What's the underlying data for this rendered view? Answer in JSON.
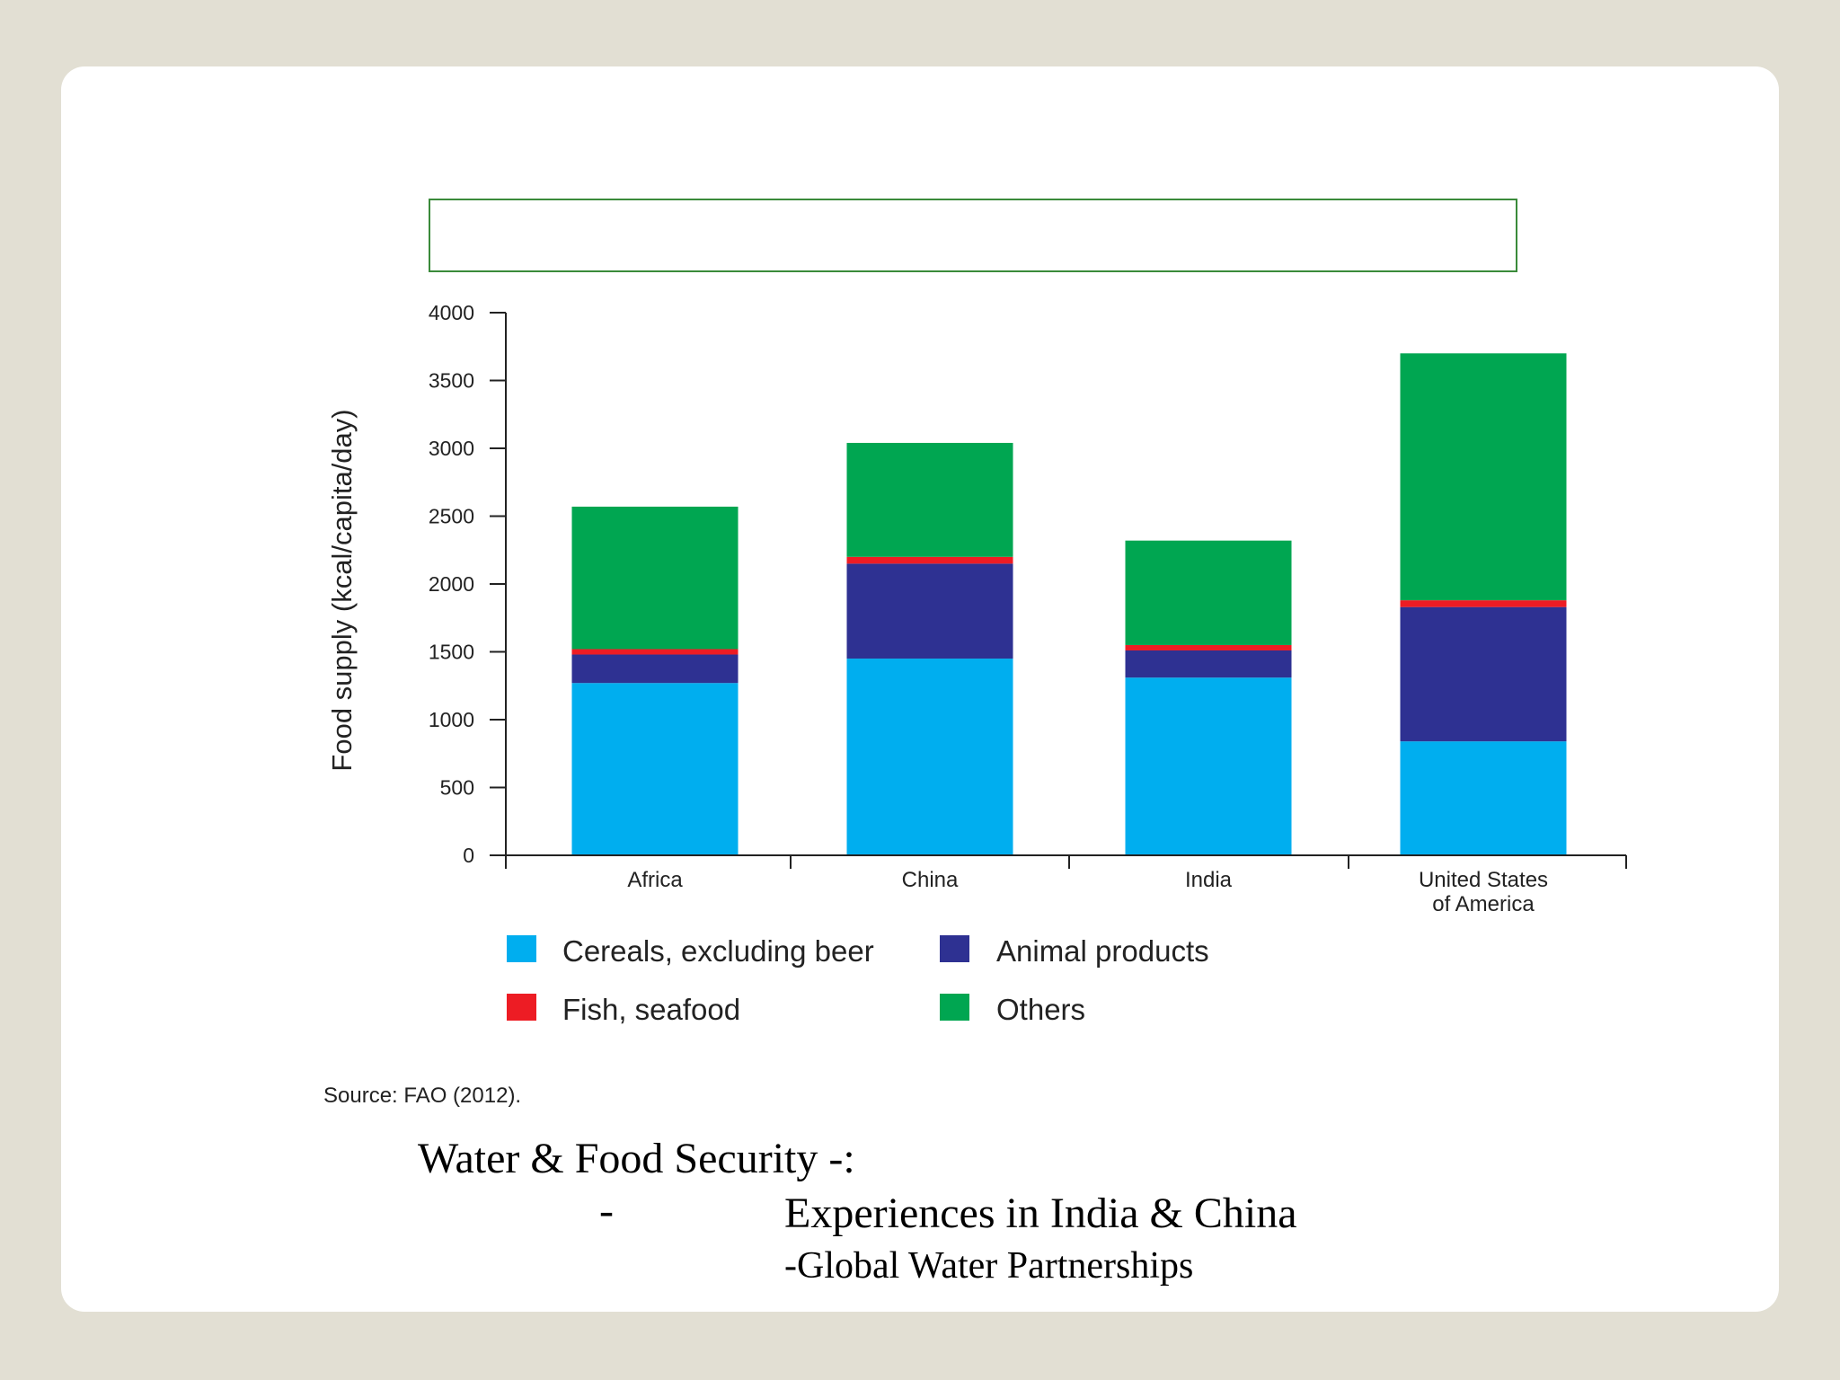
{
  "chart_data": {
    "type": "bar",
    "stacked": true,
    "title": "",
    "ylabel": "Food supply (kcal/capita/day)",
    "xlabel": "",
    "ylim": [
      0,
      4000
    ],
    "yticks": [
      0,
      500,
      1000,
      1500,
      2000,
      2500,
      3000,
      3500,
      4000
    ],
    "categories": [
      "Africa",
      "China",
      "India",
      "United States of America"
    ],
    "series": [
      {
        "name": "Cereals, excluding beer",
        "color": "#00aeef",
        "values": [
          1270,
          1450,
          1310,
          840
        ]
      },
      {
        "name": "Animal products",
        "color": "#2e3192",
        "values": [
          210,
          700,
          200,
          990
        ]
      },
      {
        "name": "Fish, seafood",
        "color": "#ed1c24",
        "values": [
          40,
          50,
          40,
          50
        ]
      },
      {
        "name": "Others",
        "color": "#00a651",
        "values": [
          1050,
          840,
          770,
          1820
        ]
      }
    ],
    "legend_position": "bottom",
    "grid": false
  },
  "source_text": "Source: FAO (2012).",
  "caption": {
    "line1": "Water & Food Security -:",
    "dash": "-",
    "line2": "Experiences in India & China",
    "line3": "-Global Water Partnerships"
  }
}
